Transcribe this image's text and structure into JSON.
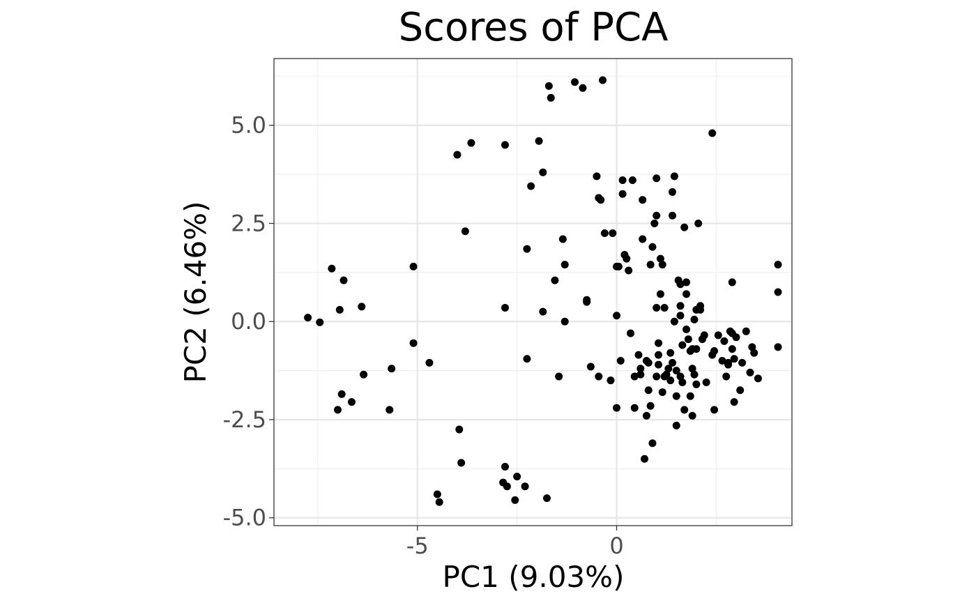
{
  "chart_data": {
    "type": "scatter",
    "title": "Scores of PCA",
    "xlabel": "PC1 (9.03%)",
    "ylabel": "PC2 (6.46%)",
    "xlim": [
      -8.6,
      4.4
    ],
    "ylim": [
      -5.2,
      6.7
    ],
    "x_ticks": [
      -5,
      0
    ],
    "x_tick_labels": [
      "-5",
      "0"
    ],
    "y_ticks": [
      -5.0,
      -2.5,
      0.0,
      2.5,
      5.0
    ],
    "y_tick_labels": [
      "-5.0",
      "-2.5",
      "0.0",
      "2.5",
      "5.0"
    ],
    "grid": true,
    "legend": "none",
    "point_color": "#000000",
    "points": [
      [
        -7.75,
        0.1
      ],
      [
        -7.45,
        -0.02
      ],
      [
        -7.15,
        1.35
      ],
      [
        -6.95,
        0.3
      ],
      [
        -6.85,
        1.05
      ],
      [
        -6.4,
        0.38
      ],
      [
        -6.35,
        -1.35
      ],
      [
        -6.9,
        -1.85
      ],
      [
        -6.65,
        -2.05
      ],
      [
        -7.0,
        -2.25
      ],
      [
        -5.65,
        -1.2
      ],
      [
        -5.7,
        -2.25
      ],
      [
        -5.1,
        1.4
      ],
      [
        -5.1,
        -0.55
      ],
      [
        -4.7,
        -1.05
      ],
      [
        -4.0,
        4.25
      ],
      [
        -3.65,
        4.55
      ],
      [
        -3.8,
        2.3
      ],
      [
        -3.95,
        -2.75
      ],
      [
        -3.9,
        -3.6
      ],
      [
        -4.5,
        -4.4
      ],
      [
        -4.45,
        -4.6
      ],
      [
        -2.8,
        4.5
      ],
      [
        -2.8,
        0.35
      ],
      [
        -2.8,
        -3.7
      ],
      [
        -2.85,
        -4.1
      ],
      [
        -2.75,
        -4.2
      ],
      [
        -2.5,
        -3.95
      ],
      [
        -2.55,
        -4.55
      ],
      [
        -2.3,
        -4.2
      ],
      [
        -1.95,
        4.6
      ],
      [
        -2.15,
        3.45
      ],
      [
        -1.85,
        3.8
      ],
      [
        -2.25,
        1.85
      ],
      [
        -2.25,
        -0.95
      ],
      [
        -1.85,
        0.25
      ],
      [
        -1.75,
        -4.5
      ],
      [
        -1.7,
        6.0
      ],
      [
        -1.65,
        5.7
      ],
      [
        -1.05,
        6.1
      ],
      [
        -0.85,
        5.95
      ],
      [
        -0.35,
        6.15
      ],
      [
        -1.45,
        -1.4
      ],
      [
        -1.55,
        1.05
      ],
      [
        -1.3,
        1.45
      ],
      [
        -1.35,
        2.1
      ],
      [
        -1.3,
        0.0
      ],
      [
        -0.75,
        0.55
      ],
      [
        -0.75,
        0.5
      ],
      [
        -0.65,
        -1.15
      ],
      [
        -0.5,
        3.7
      ],
      [
        -0.45,
        3.15
      ],
      [
        -0.4,
        3.1
      ],
      [
        -0.3,
        2.25
      ],
      [
        -0.1,
        2.25
      ],
      [
        -0.15,
        -1.5
      ],
      [
        -0.45,
        -1.4
      ],
      [
        0.0,
        1.4
      ],
      [
        0.05,
        1.4
      ],
      [
        0.0,
        0.15
      ],
      [
        0.0,
        -2.2
      ],
      [
        0.15,
        3.6
      ],
      [
        0.15,
        3.25
      ],
      [
        0.1,
        -1.0
      ],
      [
        0.2,
        1.7
      ],
      [
        0.25,
        1.6
      ],
      [
        0.3,
        1.3
      ],
      [
        0.35,
        -0.3
      ],
      [
        0.4,
        3.6
      ],
      [
        0.45,
        -2.2
      ],
      [
        0.45,
        -1.4
      ],
      [
        0.55,
        -0.85
      ],
      [
        0.6,
        -1.2
      ],
      [
        0.6,
        -1.35
      ],
      [
        0.65,
        2.1
      ],
      [
        0.65,
        3.1
      ],
      [
        0.7,
        -3.5
      ],
      [
        0.75,
        -2.4
      ],
      [
        0.75,
        -1.0
      ],
      [
        0.8,
        -1.75
      ],
      [
        0.8,
        -1.05
      ],
      [
        0.85,
        1.45
      ],
      [
        0.85,
        -2.15
      ],
      [
        0.9,
        -3.1
      ],
      [
        0.9,
        1.9
      ],
      [
        0.95,
        2.5
      ],
      [
        1.0,
        2.7
      ],
      [
        1.0,
        3.65
      ],
      [
        1.0,
        0.35
      ],
      [
        1.0,
        -1.4
      ],
      [
        1.05,
        -1.1
      ],
      [
        1.05,
        -0.55
      ],
      [
        1.05,
        -0.85
      ],
      [
        1.1,
        0.7
      ],
      [
        1.1,
        1.6
      ],
      [
        1.15,
        1.45
      ],
      [
        1.15,
        -1.8
      ],
      [
        1.2,
        0.35
      ],
      [
        1.2,
        -1.4
      ],
      [
        1.25,
        -1.35
      ],
      [
        1.3,
        -1.2
      ],
      [
        1.35,
        -1.5
      ],
      [
        1.35,
        -0.8
      ],
      [
        1.4,
        -1.05
      ],
      [
        1.4,
        2.7
      ],
      [
        1.4,
        3.3
      ],
      [
        1.45,
        3.7
      ],
      [
        1.45,
        0.0
      ],
      [
        1.5,
        -1.9
      ],
      [
        1.5,
        -1.25
      ],
      [
        1.5,
        -2.65
      ],
      [
        1.55,
        1.05
      ],
      [
        1.6,
        0.95
      ],
      [
        1.6,
        0.4
      ],
      [
        1.6,
        0.15
      ],
      [
        1.6,
        -1.4
      ],
      [
        1.65,
        -0.6
      ],
      [
        1.65,
        -1.55
      ],
      [
        1.7,
        2.4
      ],
      [
        1.7,
        -2.25
      ],
      [
        1.75,
        0.7
      ],
      [
        1.75,
        1.0
      ],
      [
        1.75,
        -0.2
      ],
      [
        1.8,
        -0.45
      ],
      [
        1.85,
        -0.75
      ],
      [
        1.85,
        -1.9
      ],
      [
        1.9,
        -0.7
      ],
      [
        1.9,
        -1.2
      ],
      [
        1.9,
        -2.4
      ],
      [
        1.95,
        -1.35
      ],
      [
        1.95,
        0.05
      ],
      [
        2.0,
        0.3
      ],
      [
        2.0,
        -1.6
      ],
      [
        2.0,
        -0.7
      ],
      [
        2.05,
        2.5
      ],
      [
        2.1,
        0.4
      ],
      [
        2.1,
        0.3
      ],
      [
        2.15,
        -0.45
      ],
      [
        2.2,
        -0.35
      ],
      [
        2.25,
        -1.55
      ],
      [
        2.4,
        4.8
      ],
      [
        2.4,
        -0.85
      ],
      [
        2.45,
        -0.75
      ],
      [
        2.45,
        -2.25
      ],
      [
        2.55,
        -0.35
      ],
      [
        2.65,
        -1.0
      ],
      [
        2.7,
        -0.5
      ],
      [
        2.75,
        -1.4
      ],
      [
        2.8,
        -1.1
      ],
      [
        2.8,
        -1.05
      ],
      [
        2.85,
        -0.25
      ],
      [
        2.9,
        -0.3
      ],
      [
        2.9,
        -0.7
      ],
      [
        2.9,
        1.0
      ],
      [
        2.95,
        -0.95
      ],
      [
        2.95,
        -2.05
      ],
      [
        3.0,
        -0.4
      ],
      [
        3.1,
        -1.75
      ],
      [
        3.15,
        -1.05
      ],
      [
        3.25,
        -0.25
      ],
      [
        3.35,
        -1.3
      ],
      [
        3.4,
        -0.65
      ],
      [
        3.45,
        -0.8
      ],
      [
        3.55,
        -1.45
      ],
      [
        4.05,
        1.45
      ],
      [
        4.05,
        0.75
      ],
      [
        4.05,
        -0.65
      ]
    ]
  }
}
